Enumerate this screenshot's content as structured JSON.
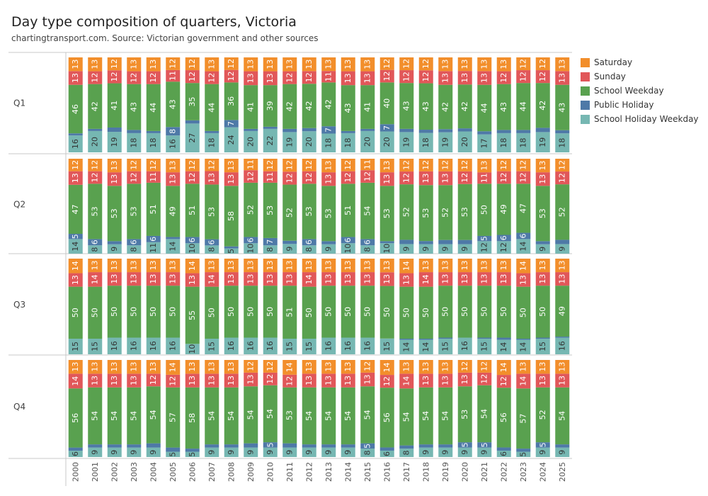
{
  "title": "Day type composition of quarters, Victoria",
  "subtitle": "chartingtransport.com. Source: Victorian government and other sources",
  "chart_data": {
    "type": "bar",
    "stacked": true,
    "orientation": "vertical",
    "title": "Day type composition of quarters, Victoria",
    "categories": [
      "2000",
      "2001",
      "2002",
      "2003",
      "2004",
      "2005",
      "2006",
      "2007",
      "2008",
      "2009",
      "2010",
      "2011",
      "2012",
      "2013",
      "2014",
      "2015",
      "2016",
      "2017",
      "2018",
      "2019",
      "2020",
      "2021",
      "2022",
      "2023",
      "2024",
      "2025"
    ],
    "legend": {
      "placement": "right"
    },
    "series": [
      {
        "name": "Saturday",
        "color": "#f28e2b"
      },
      {
        "name": "Sunday",
        "color": "#e15759"
      },
      {
        "name": "School Weekday",
        "color": "#59a14f"
      },
      {
        "name": "Public Holiday",
        "color": "#4e79a7"
      },
      {
        "name": "School Holiday Weekday",
        "color": "#76b7b2"
      }
    ],
    "panels": [
      {
        "label": "Q1",
        "data": {
          "Saturday": [
            13,
            13,
            12,
            13,
            13,
            12,
            12,
            13,
            12,
            13,
            13,
            13,
            13,
            13,
            13,
            13,
            12,
            12,
            12,
            13,
            13,
            13,
            13,
            12,
            12,
            13
          ],
          "Sunday": [
            13,
            12,
            12,
            12,
            12,
            11,
            12,
            12,
            12,
            13,
            13,
            12,
            12,
            11,
            13,
            13,
            12,
            12,
            12,
            13,
            13,
            13,
            12,
            12,
            12,
            13
          ],
          "School Weekday": [
            46,
            42,
            41,
            43,
            44,
            43,
            35,
            44,
            36,
            41,
            39,
            42,
            42,
            42,
            43,
            41,
            40,
            43,
            43,
            42,
            42,
            44,
            43,
            44,
            42,
            43
          ],
          "Public Holiday": [
            2,
            2,
            4,
            3,
            2,
            8,
            3,
            2,
            7,
            2,
            2,
            3,
            3,
            7,
            2,
            2,
            7,
            3,
            3,
            3,
            3,
            3,
            3,
            3,
            4,
            3
          ],
          "School Holiday Weekday": [
            16,
            20,
            19,
            18,
            18,
            16,
            27,
            18,
            24,
            20,
            22,
            19,
            20,
            18,
            18,
            20,
            20,
            19,
            18,
            19,
            20,
            17,
            18,
            18,
            19,
            18
          ]
        }
      },
      {
        "label": "Q2",
        "data": {
          "Saturday": [
            12,
            12,
            13,
            12,
            12,
            13,
            12,
            12,
            13,
            11,
            12,
            12,
            12,
            13,
            12,
            11,
            13,
            12,
            12,
            12,
            12,
            13,
            12,
            12,
            13,
            12
          ],
          "Sunday": [
            13,
            12,
            13,
            12,
            11,
            13,
            12,
            13,
            13,
            12,
            11,
            12,
            12,
            13,
            12,
            12,
            13,
            12,
            13,
            13,
            12,
            11,
            12,
            12,
            13,
            12
          ],
          "School Weekday": [
            47,
            53,
            53,
            53,
            51,
            49,
            51,
            53,
            58,
            52,
            53,
            52,
            53,
            53,
            51,
            54,
            53,
            52,
            53,
            52,
            53,
            50,
            49,
            47,
            53,
            52
          ],
          "Public Holiday": [
            5,
            6,
            3,
            6,
            6,
            2,
            6,
            6,
            2,
            6,
            7,
            3,
            6,
            3,
            6,
            6,
            2,
            4,
            3,
            4,
            4,
            5,
            6,
            6,
            3,
            4
          ],
          "School Holiday Weekday": [
            14,
            8,
            9,
            8,
            11,
            14,
            10,
            8,
            5,
            10,
            8,
            9,
            8,
            9,
            10,
            8,
            10,
            9,
            9,
            9,
            9,
            12,
            12,
            14,
            9,
            9
          ]
        }
      },
      {
        "label": "Q3",
        "data": {
          "Saturday": [
            14,
            13,
            13,
            13,
            13,
            13,
            14,
            13,
            13,
            13,
            13,
            13,
            13,
            13,
            13,
            13,
            13,
            14,
            13,
            13,
            13,
            13,
            13,
            14,
            13,
            13
          ],
          "Sunday": [
            13,
            14,
            13,
            13,
            13,
            13,
            13,
            14,
            13,
            13,
            13,
            13,
            14,
            13,
            13,
            13,
            13,
            13,
            14,
            13,
            13,
            13,
            13,
            13,
            13,
            13
          ],
          "School Weekday": [
            50,
            50,
            50,
            50,
            50,
            50,
            55,
            50,
            50,
            50,
            50,
            51,
            50,
            50,
            50,
            50,
            50,
            50,
            50,
            50,
            50,
            50,
            50,
            50,
            50,
            49
          ],
          "Public Holiday": [
            0,
            0,
            0,
            0,
            0,
            0,
            0,
            0,
            0,
            0,
            0,
            0,
            0,
            0,
            0,
            0,
            0,
            1,
            1,
            1,
            0,
            1,
            2,
            1,
            1,
            1
          ],
          "School Holiday Weekday": [
            15,
            15,
            16,
            16,
            16,
            16,
            10,
            15,
            16,
            16,
            16,
            15,
            15,
            16,
            16,
            16,
            15,
            14,
            14,
            15,
            16,
            15,
            14,
            14,
            15,
            16
          ]
        }
      },
      {
        "label": "Q4",
        "data": {
          "Saturday": [
            13,
            13,
            13,
            13,
            13,
            14,
            13,
            13,
            13,
            12,
            12,
            14,
            13,
            13,
            13,
            12,
            14,
            13,
            13,
            13,
            12,
            12,
            14,
            13,
            13,
            13
          ],
          "Sunday": [
            14,
            13,
            13,
            13,
            12,
            12,
            13,
            13,
            13,
            13,
            12,
            12,
            13,
            13,
            13,
            13,
            12,
            14,
            13,
            13,
            13,
            12,
            12,
            14,
            13,
            13
          ],
          "School Weekday": [
            56,
            54,
            54,
            54,
            54,
            57,
            58,
            54,
            54,
            54,
            54,
            53,
            54,
            54,
            54,
            54,
            56,
            54,
            54,
            54,
            53,
            54,
            56,
            57,
            52,
            54
          ],
          "Public Holiday": [
            3,
            3,
            3,
            3,
            4,
            4,
            3,
            3,
            3,
            4,
            5,
            4,
            3,
            3,
            3,
            5,
            3,
            3,
            3,
            3,
            5,
            5,
            3,
            3,
            5,
            3
          ],
          "School Holiday Weekday": [
            6,
            9,
            9,
            9,
            9,
            5,
            5,
            9,
            9,
            9,
            9,
            9,
            9,
            9,
            9,
            8,
            6,
            8,
            9,
            9,
            9,
            9,
            6,
            5,
            9,
            9
          ]
        }
      }
    ]
  }
}
